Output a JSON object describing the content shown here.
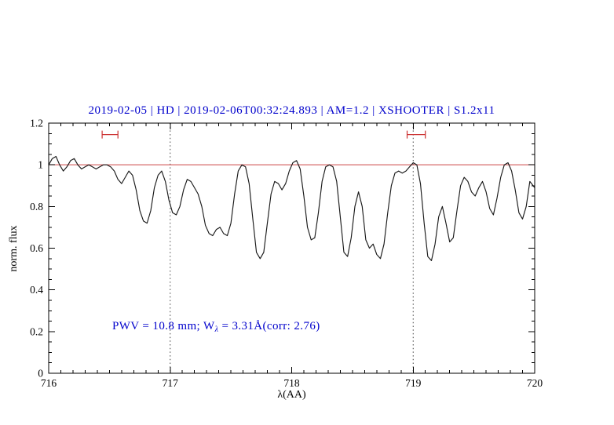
{
  "chart_data": {
    "type": "line",
    "title": "2019-02-05 | HD | 2019-02-06T00:32:24.893 | AM=1.2 | XSHOOTER | S1.2x11",
    "xlabel": "λ(AA)",
    "ylabel": "norm. flux",
    "xlim": [
      716,
      720
    ],
    "ylim": [
      0,
      1.2
    ],
    "x_ticks": [
      716,
      717,
      718,
      719,
      720
    ],
    "x_tick_labels": [
      "716",
      "717",
      "718",
      "719",
      "720"
    ],
    "y_ticks": [
      0,
      0.2,
      0.4,
      0.6,
      0.8,
      1.0,
      1.2
    ],
    "y_tick_labels": [
      "0",
      "0.2",
      "0.4",
      "0.6",
      "0.8",
      "1",
      "1.2"
    ],
    "x_minor_step": 0.1,
    "y_minor_step": 0.05,
    "grid": false,
    "legend": "none",
    "reference_line_y": 1.0,
    "dotted_vlines": [
      717,
      719
    ],
    "range_markers": [
      {
        "x1": 716.44,
        "x2": 716.57,
        "y": 1.145
      },
      {
        "x1": 718.95,
        "x2": 719.1,
        "y": 1.145
      }
    ],
    "annotation": {
      "pre": "PWV = 10.8 mm; W",
      "sub": "λ",
      "post": " = 3.31Å(corr: 2.76)"
    },
    "colors": {
      "spectrum": "#1a1a1a",
      "reference": "#cc4444",
      "markers": "#cc3333",
      "title": "#0000cc",
      "annotation": "#0000cc",
      "axis": "#000000",
      "dotted": "#444444"
    },
    "series": [
      {
        "name": "spectrum",
        "points": [
          [
            716.0,
            1.0
          ],
          [
            716.03,
            1.03
          ],
          [
            716.06,
            1.04
          ],
          [
            716.09,
            1.0
          ],
          [
            716.12,
            0.97
          ],
          [
            716.15,
            0.99
          ],
          [
            716.18,
            1.02
          ],
          [
            716.21,
            1.03
          ],
          [
            716.24,
            1.0
          ],
          [
            716.27,
            0.98
          ],
          [
            716.3,
            0.99
          ],
          [
            716.33,
            1.0
          ],
          [
            716.36,
            0.99
          ],
          [
            716.39,
            0.98
          ],
          [
            716.42,
            0.99
          ],
          [
            716.45,
            1.0
          ],
          [
            716.48,
            1.0
          ],
          [
            716.51,
            0.99
          ],
          [
            716.54,
            0.97
          ],
          [
            716.57,
            0.93
          ],
          [
            716.6,
            0.91
          ],
          [
            716.63,
            0.94
          ],
          [
            716.66,
            0.97
          ],
          [
            716.69,
            0.95
          ],
          [
            716.72,
            0.88
          ],
          [
            716.75,
            0.78
          ],
          [
            716.78,
            0.73
          ],
          [
            716.81,
            0.72
          ],
          [
            716.84,
            0.78
          ],
          [
            716.87,
            0.89
          ],
          [
            716.9,
            0.95
          ],
          [
            716.93,
            0.97
          ],
          [
            716.96,
            0.92
          ],
          [
            716.99,
            0.83
          ],
          [
            717.02,
            0.77
          ],
          [
            717.05,
            0.76
          ],
          [
            717.08,
            0.8
          ],
          [
            717.11,
            0.88
          ],
          [
            717.14,
            0.93
          ],
          [
            717.17,
            0.92
          ],
          [
            717.2,
            0.89
          ],
          [
            717.23,
            0.86
          ],
          [
            717.26,
            0.8
          ],
          [
            717.29,
            0.71
          ],
          [
            717.32,
            0.67
          ],
          [
            717.35,
            0.66
          ],
          [
            717.38,
            0.69
          ],
          [
            717.41,
            0.7
          ],
          [
            717.44,
            0.67
          ],
          [
            717.47,
            0.66
          ],
          [
            717.5,
            0.72
          ],
          [
            717.53,
            0.86
          ],
          [
            717.56,
            0.97
          ],
          [
            717.59,
            1.0
          ],
          [
            717.62,
            0.99
          ],
          [
            717.65,
            0.91
          ],
          [
            717.68,
            0.74
          ],
          [
            717.71,
            0.58
          ],
          [
            717.74,
            0.55
          ],
          [
            717.77,
            0.58
          ],
          [
            717.8,
            0.72
          ],
          [
            717.83,
            0.86
          ],
          [
            717.86,
            0.92
          ],
          [
            717.89,
            0.91
          ],
          [
            717.92,
            0.88
          ],
          [
            717.95,
            0.91
          ],
          [
            717.98,
            0.97
          ],
          [
            718.01,
            1.01
          ],
          [
            718.04,
            1.02
          ],
          [
            718.07,
            0.98
          ],
          [
            718.1,
            0.85
          ],
          [
            718.13,
            0.7
          ],
          [
            718.16,
            0.64
          ],
          [
            718.19,
            0.65
          ],
          [
            718.22,
            0.77
          ],
          [
            718.25,
            0.92
          ],
          [
            718.28,
            0.99
          ],
          [
            718.31,
            1.0
          ],
          [
            718.34,
            0.99
          ],
          [
            718.37,
            0.92
          ],
          [
            718.4,
            0.75
          ],
          [
            718.43,
            0.58
          ],
          [
            718.46,
            0.56
          ],
          [
            718.49,
            0.65
          ],
          [
            718.52,
            0.8
          ],
          [
            718.55,
            0.87
          ],
          [
            718.58,
            0.8
          ],
          [
            718.61,
            0.64
          ],
          [
            718.64,
            0.6
          ],
          [
            718.67,
            0.62
          ],
          [
            718.7,
            0.57
          ],
          [
            718.73,
            0.55
          ],
          [
            718.76,
            0.62
          ],
          [
            718.79,
            0.77
          ],
          [
            718.82,
            0.9
          ],
          [
            718.85,
            0.96
          ],
          [
            718.88,
            0.97
          ],
          [
            718.91,
            0.96
          ],
          [
            718.94,
            0.97
          ],
          [
            718.97,
            0.99
          ],
          [
            719.0,
            1.01
          ],
          [
            719.03,
            1.0
          ],
          [
            719.06,
            0.91
          ],
          [
            719.09,
            0.72
          ],
          [
            719.12,
            0.56
          ],
          [
            719.15,
            0.54
          ],
          [
            719.18,
            0.62
          ],
          [
            719.21,
            0.75
          ],
          [
            719.24,
            0.8
          ],
          [
            719.27,
            0.72
          ],
          [
            719.3,
            0.63
          ],
          [
            719.33,
            0.65
          ],
          [
            719.36,
            0.78
          ],
          [
            719.39,
            0.9
          ],
          [
            719.42,
            0.94
          ],
          [
            719.45,
            0.92
          ],
          [
            719.48,
            0.87
          ],
          [
            719.51,
            0.85
          ],
          [
            719.54,
            0.89
          ],
          [
            719.57,
            0.92
          ],
          [
            719.6,
            0.87
          ],
          [
            719.63,
            0.79
          ],
          [
            719.66,
            0.76
          ],
          [
            719.69,
            0.84
          ],
          [
            719.72,
            0.94
          ],
          [
            719.75,
            1.0
          ],
          [
            719.78,
            1.01
          ],
          [
            719.81,
            0.97
          ],
          [
            719.84,
            0.88
          ],
          [
            719.87,
            0.77
          ],
          [
            719.9,
            0.74
          ],
          [
            719.93,
            0.8
          ],
          [
            719.96,
            0.92
          ],
          [
            720.0,
            0.89
          ]
        ]
      }
    ]
  }
}
